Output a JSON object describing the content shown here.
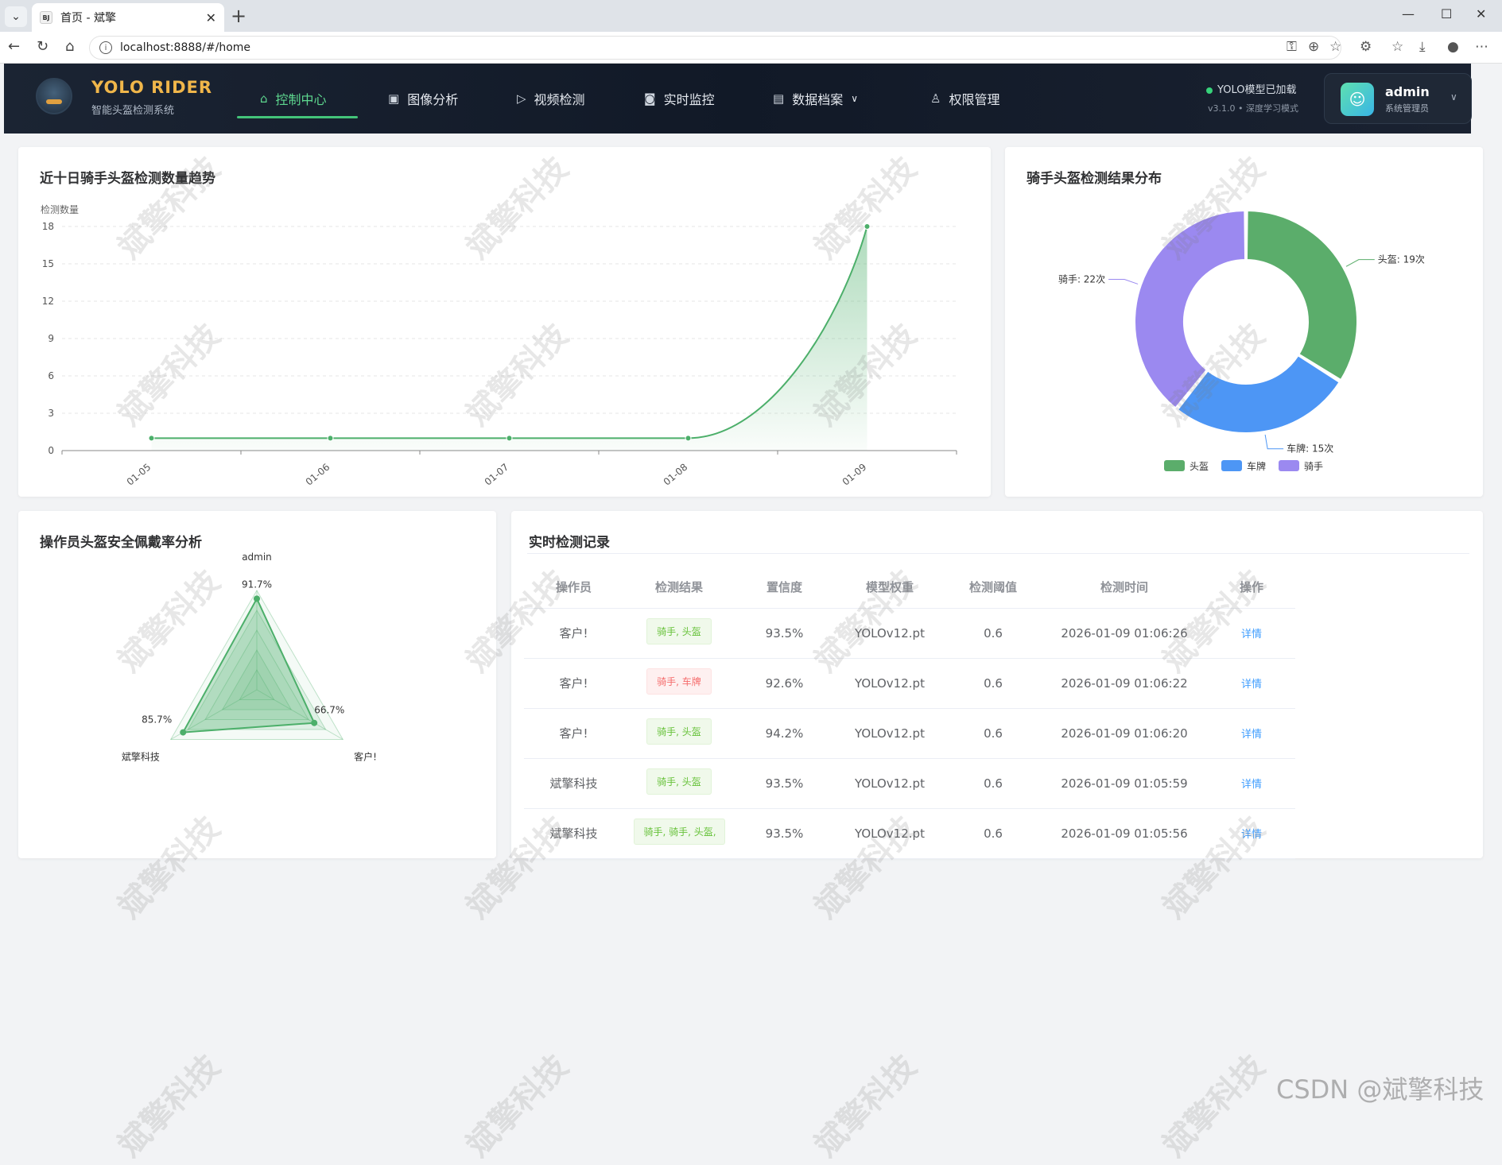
{
  "browser": {
    "tab_title": "首页 - 斌擎",
    "tab_favicon": "BJ",
    "url": "localhost:8888/#/home"
  },
  "app": {
    "brand": "YOLO RIDER",
    "brand_sub": "智能头盔检测系统",
    "nav": [
      {
        "label": "控制中心",
        "icon": "home-icon"
      },
      {
        "label": "图像分析",
        "icon": "image-icon"
      },
      {
        "label": "视频检测",
        "icon": "play-icon"
      },
      {
        "label": "实时监控",
        "icon": "camera-icon"
      },
      {
        "label": "数据档案",
        "icon": "document-icon"
      },
      {
        "label": "权限管理",
        "icon": "user-icon"
      }
    ],
    "status": "YOLO模型已加载",
    "status_sub": "v3.1.0 • 深度学习模式",
    "user": {
      "name": "admin",
      "role": "系统管理员"
    }
  },
  "trend": {
    "title": "近十日骑手头盔检测数量趋势",
    "chart_data": {
      "type": "area",
      "ylabel": "检测数量",
      "ylim": [
        0,
        18
      ],
      "yticks": [
        0,
        3,
        6,
        9,
        12,
        15,
        18
      ],
      "categories": [
        "01-05",
        "01-06",
        "01-07",
        "01-08",
        "01-09"
      ],
      "values": [
        1,
        1,
        1,
        1,
        18
      ],
      "color": "#4caf6a"
    }
  },
  "distribution": {
    "title": "骑手头盔检测结果分布",
    "chart_data": {
      "type": "pie",
      "donut": true,
      "legend": "bottom",
      "slices": [
        {
          "name": "头盔",
          "value": 19,
          "label": "头盔: 19次",
          "color": "#5bad6b"
        },
        {
          "name": "车牌",
          "value": 15,
          "label": "车牌: 15次",
          "color": "#4d96f5"
        },
        {
          "name": "骑手",
          "value": 22,
          "label": "骑手: 22次",
          "color": "#9b89f0"
        }
      ]
    }
  },
  "radar": {
    "title": "操作员头盔安全佩戴率分析",
    "chart_data": {
      "type": "radar",
      "max": 100,
      "axes": [
        {
          "name": "admin",
          "value": 91.7,
          "label": "91.7%"
        },
        {
          "name": "客户!",
          "value": 66.7,
          "label": "66.7%"
        },
        {
          "name": "斌擎科技",
          "value": 85.7,
          "label": "85.7%"
        }
      ],
      "color": "#4caf6a"
    }
  },
  "records": {
    "title": "实时检测记录",
    "headers": [
      "操作员",
      "检测结果",
      "置信度",
      "模型权重",
      "检测阈值",
      "检测时间",
      "操作"
    ],
    "rows": [
      {
        "operator": "客户!",
        "result": "骑手, 头盔",
        "status": "ok",
        "confidence": "93.5%",
        "model": "YOLOv12.pt",
        "threshold": "0.6",
        "time": "2026-01-09 01:06:26",
        "action": "详情"
      },
      {
        "operator": "客户!",
        "result": "骑手, 车牌",
        "status": "bad",
        "confidence": "92.6%",
        "model": "YOLOv12.pt",
        "threshold": "0.6",
        "time": "2026-01-09 01:06:22",
        "action": "详情"
      },
      {
        "operator": "客户!",
        "result": "骑手, 头盔",
        "status": "ok",
        "confidence": "94.2%",
        "model": "YOLOv12.pt",
        "threshold": "0.6",
        "time": "2026-01-09 01:06:20",
        "action": "详情"
      },
      {
        "operator": "斌擎科技",
        "result": "骑手, 头盔",
        "status": "ok",
        "confidence": "93.5%",
        "model": "YOLOv12.pt",
        "threshold": "0.6",
        "time": "2026-01-09 01:05:59",
        "action": "详情"
      },
      {
        "operator": "斌擎科技",
        "result": "骑手, 骑手, 头盔,",
        "status": "ok",
        "confidence": "93.5%",
        "model": "YOLOv12.pt",
        "threshold": "0.6",
        "time": "2026-01-09 01:05:56",
        "action": "详情"
      }
    ]
  },
  "watermark": "斌擎科技",
  "footer_mark": "CSDN @斌擎科技"
}
